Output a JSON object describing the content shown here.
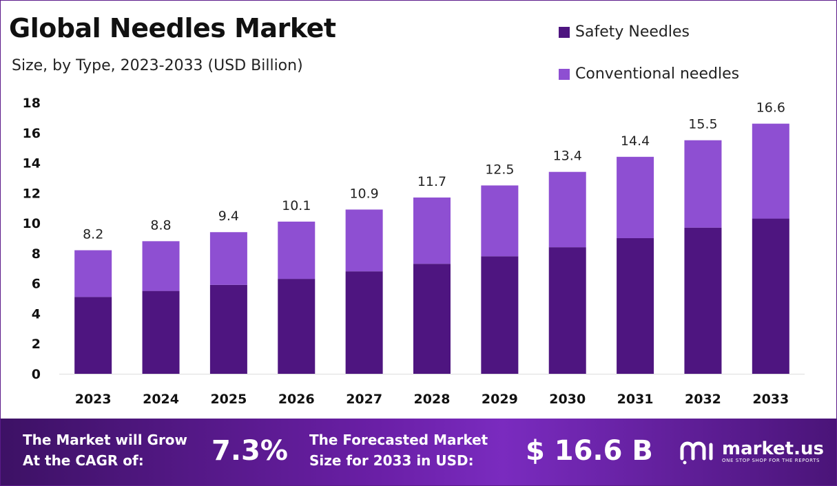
{
  "chart_data": {
    "type": "bar",
    "stacked": true,
    "title": "Global Needles Market",
    "subtitle": "Size, by Type, 2023-2033 (USD Billion)",
    "categories": [
      "2023",
      "2024",
      "2025",
      "2026",
      "2027",
      "2028",
      "2029",
      "2030",
      "2031",
      "2032",
      "2033"
    ],
    "series": [
      {
        "name": "Safety Needles",
        "color": "#4e1580",
        "values": [
          5.1,
          5.5,
          5.9,
          6.3,
          6.8,
          7.3,
          7.8,
          8.4,
          9.0,
          9.7,
          10.3
        ]
      },
      {
        "name": "Conventional needles",
        "color": "#8e4fd2",
        "values": [
          3.1,
          3.3,
          3.5,
          3.8,
          4.1,
          4.4,
          4.7,
          5.0,
          5.4,
          5.8,
          6.3
        ]
      }
    ],
    "totals": [
      "8.2",
      "8.8",
      "9.4",
      "10.1",
      "10.9",
      "11.7",
      "12.5",
      "13.4",
      "14.4",
      "15.5",
      "16.6"
    ],
    "ylim": [
      0,
      18
    ],
    "yticks": [
      0,
      2,
      4,
      6,
      8,
      10,
      12,
      14,
      16,
      18
    ],
    "xlabel": "",
    "ylabel": "",
    "grid": false,
    "legend_position": "top-right"
  },
  "footer": {
    "cagr_label_line1": "The Market will Grow",
    "cagr_label_line2": "At the CAGR of:",
    "cagr_value": "7.3%",
    "forecast_label_line1": "The Forecasted Market",
    "forecast_label_line2": "Size for 2033 in USD:",
    "forecast_value": "$ 16.6 B",
    "logo_name": "market.us",
    "logo_tagline": "ONE STOP SHOP FOR THE REPORTS"
  },
  "colors": {
    "footer_start": "#3d1165",
    "footer_end": "#7a2bbf",
    "frame_border": "#5b1a8a"
  },
  "icons": [
    "market-us-logo-icon"
  ]
}
